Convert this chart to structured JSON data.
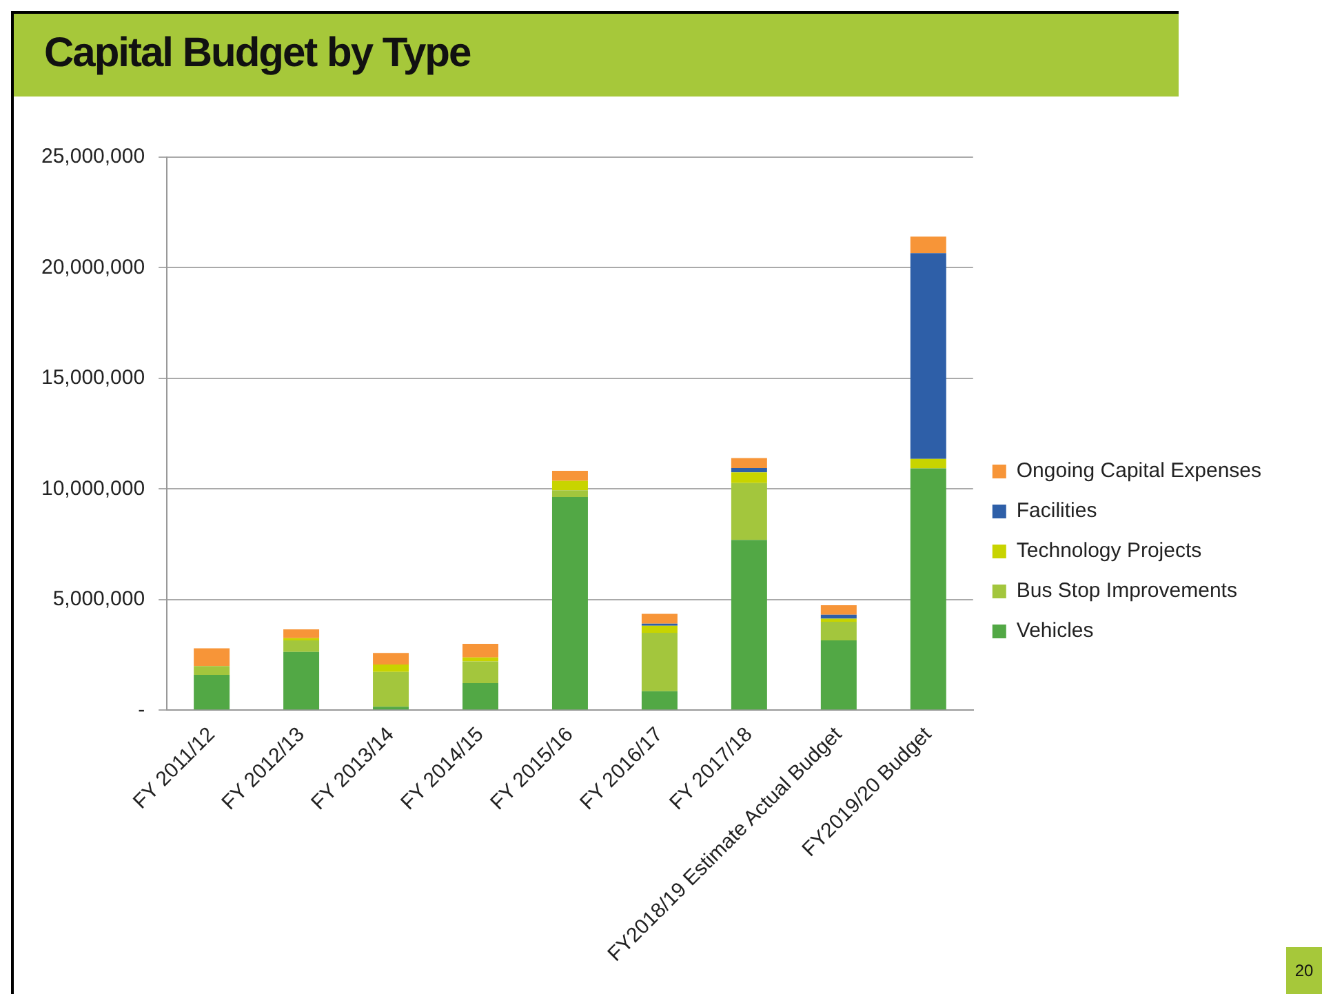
{
  "chart_data": {
    "type": "bar",
    "title": "Capital Budget by Type",
    "stacked": true,
    "categories": [
      "FY 2011/12",
      "FY 2012/13",
      "FY 2013/14",
      "FY 2014/15",
      "FY 2015/16",
      "FY 2016/17",
      "FY 2017/18",
      "FY2018/19 Estimate Actual Budget",
      "FY2019/20 Budget"
    ],
    "series": [
      {
        "name": "Vehicles",
        "color": "#52a845",
        "values": [
          1600000,
          2640000,
          160000,
          1230000,
          9640000,
          860000,
          7700000,
          3160000,
          10930000
        ]
      },
      {
        "name": "Bus Stop Improvements",
        "color": "#a3c63d",
        "values": [
          400000,
          520000,
          1570000,
          980000,
          300000,
          2640000,
          2570000,
          840000,
          0
        ]
      },
      {
        "name": "Technology Projects",
        "color": "#c8d400",
        "values": [
          0,
          100000,
          340000,
          180000,
          430000,
          320000,
          480000,
          140000,
          430000
        ]
      },
      {
        "name": "Facilities",
        "color": "#2e5fa8",
        "values": [
          0,
          0,
          0,
          0,
          0,
          90000,
          200000,
          180000,
          9300000
        ]
      },
      {
        "name": "Ongoing Capital Expenses",
        "color": "#f79538",
        "values": [
          800000,
          400000,
          520000,
          610000,
          450000,
          450000,
          450000,
          430000,
          750000
        ]
      }
    ],
    "ylim": [
      0,
      25000000
    ],
    "yticks": [
      {
        "value": 0,
        "label": "-"
      },
      {
        "value": 5000000,
        "label": "5,000,000"
      },
      {
        "value": 10000000,
        "label": "10,000,000"
      },
      {
        "value": 15000000,
        "label": "15,000,000"
      },
      {
        "value": 20000000,
        "label": "20,000,000"
      },
      {
        "value": 25000000,
        "label": "25,000,000"
      }
    ],
    "grid": "y",
    "legend": "right",
    "annotations": [
      "20"
    ]
  }
}
